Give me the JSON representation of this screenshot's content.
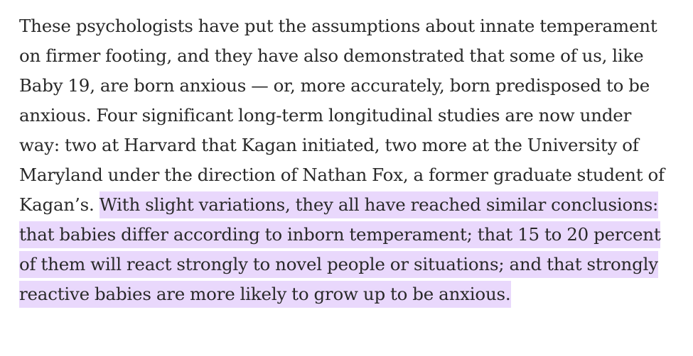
{
  "paragraph": {
    "plain_text": "These psychologists have put the assumptions about innate temperament on firmer footing, and they have also demonstrated that some of us, like Baby 19, are born anxious — or, more accurately, born predisposed to be anxious. Four significant long-term longitudinal studies are now under way: two at Harvard that Kagan initiated, two more at the University of Maryland under the direction of Nathan Fox, a former graduate student of Kagan’s. ",
    "highlighted_text": "With slight variations, they all have reached similar conclusions: that babies differ according to inborn temperament; that 15 to 20 percent of them will react strongly to novel people or situations; and that strongly reactive babies are more likely to grow up to be anxious.",
    "highlight_color": "#e9d8fc",
    "text_color": "#292929"
  }
}
